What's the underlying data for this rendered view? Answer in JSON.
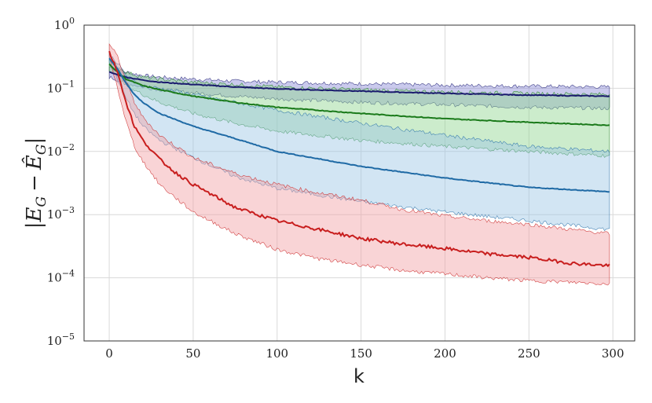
{
  "chart_data": {
    "type": "line",
    "title": "",
    "xlabel": "k",
    "ylabel": "|E_G − ÊG|",
    "ylabel_parts": {
      "left_bar": "|",
      "e1": "E",
      "sub1": "G",
      "minus": "−",
      "e2": "Ê",
      "sub2": "G",
      "right_bar": "|"
    },
    "xscale": "linear",
    "yscale": "log",
    "xlim": [
      -15,
      313
    ],
    "ylim": [
      1e-05,
      1
    ],
    "xticks": [
      0,
      50,
      100,
      150,
      200,
      250,
      300
    ],
    "xtick_labels": [
      "0",
      "50",
      "100",
      "150",
      "200",
      "250",
      "300"
    ],
    "yticks": [
      {
        "value": 1,
        "base": "10",
        "exp": "0"
      },
      {
        "value": 0.1,
        "base": "10",
        "exp": "−1"
      },
      {
        "value": 0.01,
        "base": "10",
        "exp": "−2"
      },
      {
        "value": 0.001,
        "base": "10",
        "exp": "−3"
      },
      {
        "value": 0.0001,
        "base": "10",
        "exp": "−4"
      },
      {
        "value": 1e-05,
        "base": "10",
        "exp": "−5"
      }
    ],
    "grid": true,
    "legend": "none",
    "series": [
      {
        "color": "#1a1a6e",
        "fill": "#8a8ad6",
        "x": [
          0,
          10,
          20,
          30,
          50,
          75,
          100,
          150,
          200,
          250,
          298
        ],
        "mean": [
          0.18,
          0.15,
          0.135,
          0.125,
          0.115,
          0.105,
          0.098,
          0.09,
          0.083,
          0.078,
          0.075
        ],
        "upper": [
          0.22,
          0.18,
          0.16,
          0.15,
          0.14,
          0.13,
          0.125,
          0.118,
          0.112,
          0.108,
          0.105
        ],
        "lower": [
          0.15,
          0.12,
          0.105,
          0.095,
          0.085,
          0.075,
          0.068,
          0.06,
          0.055,
          0.05,
          0.048
        ]
      },
      {
        "color": "#1a7a1a",
        "fill": "#8fd48f",
        "x": [
          0,
          5,
          10,
          20,
          30,
          50,
          75,
          100,
          150,
          200,
          250,
          298
        ],
        "mean": [
          0.24,
          0.18,
          0.14,
          0.11,
          0.095,
          0.075,
          0.06,
          0.05,
          0.04,
          0.033,
          0.029,
          0.026
        ],
        "upper": [
          0.3,
          0.22,
          0.18,
          0.15,
          0.14,
          0.125,
          0.115,
          0.105,
          0.095,
          0.088,
          0.083,
          0.08
        ],
        "lower": [
          0.2,
          0.15,
          0.11,
          0.08,
          0.06,
          0.04,
          0.028,
          0.021,
          0.015,
          0.012,
          0.01,
          0.0085
        ]
      },
      {
        "color": "#1f6aa5",
        "fill": "#9cc6e4",
        "x": [
          0,
          5,
          10,
          15,
          20,
          30,
          50,
          75,
          100,
          150,
          200,
          250,
          298
        ],
        "mean": [
          0.3,
          0.2,
          0.12,
          0.08,
          0.06,
          0.04,
          0.025,
          0.016,
          0.01,
          0.0058,
          0.0038,
          0.0027,
          0.0023
        ],
        "upper": [
          0.35,
          0.25,
          0.16,
          0.13,
          0.11,
          0.1,
          0.08,
          0.06,
          0.045,
          0.028,
          0.018,
          0.012,
          0.01
        ],
        "lower": [
          0.26,
          0.14,
          0.07,
          0.04,
          0.025,
          0.015,
          0.008,
          0.004,
          0.0026,
          0.0016,
          0.0011,
          0.0008,
          0.00058
        ]
      },
      {
        "color": "#c81e1e",
        "fill": "#f2a0a5",
        "x": [
          0,
          5,
          10,
          15,
          20,
          30,
          40,
          50,
          75,
          100,
          125,
          150,
          175,
          200,
          225,
          250,
          275,
          298
        ],
        "mean": [
          0.38,
          0.18,
          0.06,
          0.025,
          0.015,
          0.0075,
          0.0045,
          0.003,
          0.0013,
          0.0008,
          0.00058,
          0.00042,
          0.00034,
          0.00029,
          0.00024,
          0.00021,
          0.00017,
          0.000155
        ],
        "upper": [
          0.5,
          0.32,
          0.13,
          0.06,
          0.035,
          0.018,
          0.012,
          0.008,
          0.0045,
          0.003,
          0.0022,
          0.0017,
          0.0012,
          0.00095,
          0.0008,
          0.0007,
          0.00058,
          0.0005
        ],
        "lower": [
          0.3,
          0.1,
          0.03,
          0.012,
          0.007,
          0.003,
          0.0018,
          0.0011,
          0.0005,
          0.00028,
          0.0002,
          0.00016,
          0.00013,
          0.000115,
          0.0001,
          9e-05,
          8.5e-05,
          8e-05
        ]
      }
    ]
  }
}
